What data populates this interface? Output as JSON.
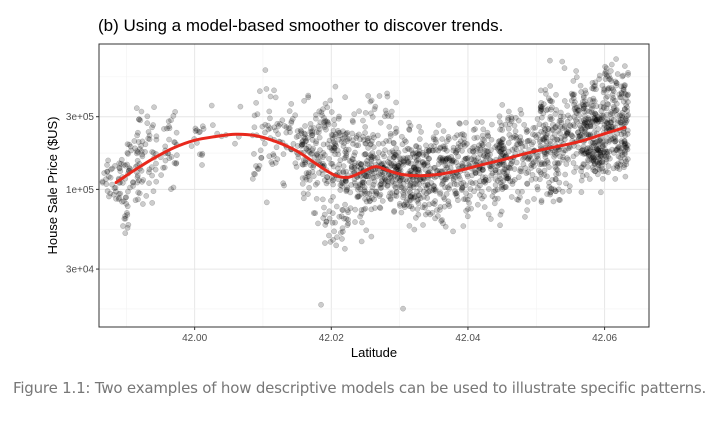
{
  "chart_data": {
    "type": "scatter",
    "title": "(b) Using a model-based smoother to discover trends.",
    "xlabel": "Latitude",
    "ylabel": "House Sale Price ($US)",
    "y_scale": "log10",
    "xlim": [
      41.986,
      42.0665
    ],
    "ylim": [
      12500,
      900000
    ],
    "x_ticks": [
      42.0,
      42.02,
      42.04,
      42.06
    ],
    "x_tick_labels": [
      "42.00",
      "42.02",
      "42.04",
      "42.06"
    ],
    "y_ticks": [
      30000,
      100000,
      300000
    ],
    "y_tick_labels": [
      "3e+04",
      "1e+05",
      "3e+05"
    ],
    "grid": true,
    "point_color": "#000000",
    "point_alpha": 0.2,
    "smoother_color": "#e8281c",
    "smoother": {
      "x": [
        41.9885,
        41.991,
        41.994,
        41.997,
        42.0,
        42.003,
        42.006,
        42.009,
        42.012,
        42.015,
        42.018,
        42.0205,
        42.0225,
        42.0245,
        42.0265,
        42.0285,
        42.0305,
        42.033,
        42.036,
        42.039,
        42.042,
        42.045,
        42.048,
        42.051,
        42.054,
        42.057,
        42.06,
        42.063
      ],
      "y": [
        111000,
        132000,
        160000,
        188000,
        210000,
        222000,
        230000,
        225000,
        205000,
        178000,
        145000,
        124000,
        120000,
        130000,
        141000,
        132000,
        125000,
        123000,
        126000,
        134000,
        145000,
        156000,
        170000,
        183000,
        195000,
        210000,
        232000,
        255000
      ]
    },
    "clusters": [
      {
        "x": [
          41.9865,
          41.9895
        ],
        "center": 120000,
        "spread": 0.09,
        "n": 40
      },
      {
        "x": [
          41.9895,
          41.9905
        ],
        "center": 72000,
        "spread": 0.06,
        "n": 14
      },
      {
        "x": [
          41.9895,
          41.9925
        ],
        "center": 135000,
        "spread": 0.1,
        "n": 40
      },
      {
        "x": [
          41.991,
          41.994
        ],
        "center": 95000,
        "spread": 0.05,
        "n": 6
      },
      {
        "x": [
          41.9915,
          41.9975
        ],
        "center": 190000,
        "spread": 0.12,
        "n": 70
      },
      {
        "x": [
          41.9995,
          42.0015
        ],
        "center": 220000,
        "spread": 0.1,
        "n": 14
      },
      {
        "x": [
          42.0015,
          42.0085
        ],
        "center": 235000,
        "spread": 0.08,
        "n": 8
      },
      {
        "x": [
          42.0085,
          42.0095
        ],
        "center": 140000,
        "spread": 0.05,
        "n": 6
      },
      {
        "x": [
          42.0085,
          42.0105
        ],
        "center": 240000,
        "spread": 0.14,
        "n": 16
      },
      {
        "x": [
          42.0105,
          42.0155
        ],
        "center": 215000,
        "spread": 0.12,
        "n": 60
      },
      {
        "x": [
          42.0155,
          42.0215
        ],
        "center": 170000,
        "spread": 0.16,
        "n": 180
      },
      {
        "x": [
          42.0175,
          42.0235
        ],
        "center": 62000,
        "spread": 0.13,
        "n": 35
      },
      {
        "x": [
          42.0215,
          42.0265
        ],
        "center": 130000,
        "spread": 0.16,
        "n": 180
      },
      {
        "x": [
          42.0245,
          42.0295
        ],
        "center": 280000,
        "spread": 0.11,
        "n": 30
      },
      {
        "x": [
          42.0265,
          42.0345
        ],
        "center": 128000,
        "spread": 0.13,
        "n": 300
      },
      {
        "x": [
          42.0305,
          42.0405
        ],
        "center": 72000,
        "spread": 0.1,
        "n": 40
      },
      {
        "x": [
          42.0345,
          42.0455
        ],
        "center": 140000,
        "spread": 0.13,
        "n": 320
      },
      {
        "x": [
          42.0445,
          42.0505
        ],
        "center": 170000,
        "spread": 0.14,
        "n": 160
      },
      {
        "x": [
          42.0505,
          42.0535
        ],
        "center": 110000,
        "spread": 0.1,
        "n": 30
      },
      {
        "x": [
          42.0505,
          42.0565
        ],
        "center": 230000,
        "spread": 0.16,
        "n": 200
      },
      {
        "x": [
          42.0565,
          42.0595
        ],
        "center": 150000,
        "spread": 0.08,
        "n": 45
      },
      {
        "x": [
          42.0565,
          42.0635
        ],
        "center": 270000,
        "spread": 0.15,
        "n": 260
      },
      {
        "x": [
          42.0575,
          42.0635
        ],
        "center": 165000,
        "spread": 0.07,
        "n": 80
      },
      {
        "x": [
          42.0595,
          42.0635
        ],
        "center": 470000,
        "spread": 0.1,
        "n": 30
      }
    ],
    "outliers": [
      {
        "x": 42.0185,
        "y": 17500
      },
      {
        "x": 42.0305,
        "y": 16500
      },
      {
        "x": 42.052,
        "y": 700000
      },
      {
        "x": 42.0538,
        "y": 690000
      },
      {
        "x": 42.0025,
        "y": 355000
      },
      {
        "x": 42.009,
        "y": 370000
      }
    ]
  },
  "figure_caption": "Figure 1.1: Two examples of how descriptive models can be used to illustrate specific patterns."
}
